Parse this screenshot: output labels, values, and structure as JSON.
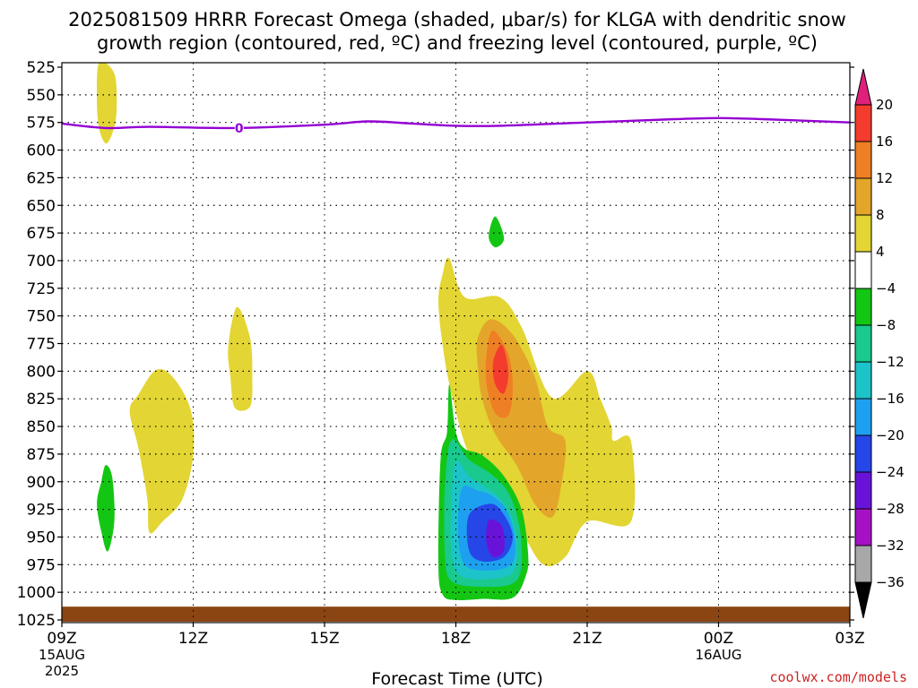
{
  "chart_data": {
    "type": "contour",
    "title_line1": "2025081509 HRRR Forecast Omega (shaded, μbar/s) for KLGA with dendritic snow",
    "title_line2": "growth region (contoured, red, ºC) and freezing level (contoured, purple, ºC)",
    "xlabel": "Forecast Time (UTC)",
    "credit": "coolwx.com/models",
    "y_axis": {
      "unit": "mb",
      "reversed": true,
      "ylim": [
        1025,
        525
      ],
      "ticks": [
        525,
        550,
        575,
        600,
        625,
        650,
        675,
        700,
        725,
        750,
        775,
        800,
        825,
        850,
        875,
        900,
        925,
        950,
        975,
        1000,
        1025
      ]
    },
    "x_axis": {
      "unit": "hours from 09Z 15AUG 2025",
      "xlim": [
        0,
        18
      ],
      "ticks": [
        {
          "x": 0,
          "label": "09Z",
          "sub1": "15AUG",
          "sub2": "2025"
        },
        {
          "x": 3,
          "label": "12Z",
          "sub1": "",
          "sub2": ""
        },
        {
          "x": 6,
          "label": "15Z",
          "sub1": "",
          "sub2": ""
        },
        {
          "x": 9,
          "label": "18Z",
          "sub1": "",
          "sub2": ""
        },
        {
          "x": 12,
          "label": "21Z",
          "sub1": "",
          "sub2": ""
        },
        {
          "x": 15,
          "label": "00Z",
          "sub1": "16AUG",
          "sub2": ""
        },
        {
          "x": 18,
          "label": "03Z",
          "sub1": "",
          "sub2": ""
        }
      ]
    },
    "grid": true,
    "colorbar": {
      "placement": "right",
      "labels": [
        20,
        16,
        12,
        8,
        4,
        -4,
        -8,
        -12,
        -16,
        -20,
        -24,
        -28,
        -32,
        -36
      ],
      "bins": [
        {
          "color": "#e0217b"
        },
        {
          "color": "#f43c2e"
        },
        {
          "color": "#ef7f24"
        },
        {
          "color": "#e3a62b"
        },
        {
          "color": "#e3d533"
        },
        {
          "color": "#ffffff"
        },
        {
          "color": "#14c614"
        },
        {
          "color": "#19c98e"
        },
        {
          "color": "#1cc4c9"
        },
        {
          "color": "#1ea0f0"
        },
        {
          "color": "#2646e8"
        },
        {
          "color": "#6a13d8"
        },
        {
          "color": "#a611c6"
        },
        {
          "color": "#a8a8a8"
        },
        {
          "color": "#000000"
        }
      ]
    },
    "freezing_level": {
      "color": "#9400d3",
      "label": "0",
      "label_x": 4.05,
      "points": [
        [
          0,
          576
        ],
        [
          1,
          580
        ],
        [
          2,
          579
        ],
        [
          4,
          580
        ],
        [
          6,
          577
        ],
        [
          7,
          574
        ],
        [
          8,
          576
        ],
        [
          9,
          578
        ],
        [
          10,
          578
        ],
        [
          12,
          575
        ],
        [
          14,
          572
        ],
        [
          15,
          571
        ],
        [
          16,
          572
        ],
        [
          18,
          575
        ]
      ]
    },
    "surface": {
      "color": "#8b4513",
      "top_mb": 1013
    },
    "regions": [
      {
        "color": "#e3d533",
        "points": [
          [
            0.85,
            521
          ],
          [
            1.2,
            531
          ],
          [
            1.25,
            565
          ],
          [
            1.15,
            585
          ],
          [
            1.0,
            594
          ],
          [
            0.85,
            580
          ],
          [
            0.8,
            555
          ]
        ]
      },
      {
        "color": "#e3d533",
        "points": [
          [
            4.0,
            742
          ],
          [
            4.3,
            770
          ],
          [
            4.35,
            806
          ],
          [
            4.3,
            832
          ],
          [
            3.95,
            833
          ],
          [
            3.85,
            805
          ],
          [
            3.8,
            778
          ]
        ]
      },
      {
        "color": "#e3d533",
        "points": [
          [
            1.75,
            821
          ],
          [
            2.15,
            799
          ],
          [
            2.55,
            806
          ],
          [
            2.95,
            836
          ],
          [
            3.0,
            876
          ],
          [
            2.75,
            916
          ],
          [
            2.3,
            936
          ],
          [
            2.0,
            946
          ],
          [
            1.95,
            915
          ],
          [
            1.75,
            870
          ],
          [
            1.55,
            836
          ]
        ]
      },
      {
        "color": "#14c614",
        "points": [
          [
            1.0,
            885
          ],
          [
            1.15,
            896
          ],
          [
            1.2,
            935
          ],
          [
            1.05,
            963
          ],
          [
            0.9,
            945
          ],
          [
            0.8,
            920
          ],
          [
            0.9,
            900
          ]
        ]
      },
      {
        "color": "#14c614",
        "points": [
          [
            9.9,
            660
          ],
          [
            10.1,
            680
          ],
          [
            9.9,
            688
          ],
          [
            9.75,
            678
          ]
        ]
      },
      {
        "color": "#e3d533",
        "points": [
          [
            8.85,
            698
          ],
          [
            9.2,
            733
          ],
          [
            10.0,
            733
          ],
          [
            10.5,
            760
          ],
          [
            11.2,
            824
          ],
          [
            12.0,
            800
          ],
          [
            12.3,
            825
          ],
          [
            12.55,
            850
          ],
          [
            12.6,
            863
          ],
          [
            13.0,
            863
          ],
          [
            13.0,
            936
          ],
          [
            12.0,
            936
          ],
          [
            11.5,
            968
          ],
          [
            11.0,
            975
          ],
          [
            10.5,
            945
          ],
          [
            9.9,
            905
          ],
          [
            9.3,
            875
          ],
          [
            8.9,
            820
          ],
          [
            8.7,
            777
          ],
          [
            8.6,
            736
          ],
          [
            8.7,
            712
          ]
        ]
      },
      {
        "color": "#e3a62b",
        "points": [
          [
            9.8,
            753
          ],
          [
            10.3,
            767
          ],
          [
            10.8,
            805
          ],
          [
            11.1,
            850
          ],
          [
            11.5,
            863
          ],
          [
            11.4,
            905
          ],
          [
            11.2,
            932
          ],
          [
            10.8,
            920
          ],
          [
            10.4,
            886
          ],
          [
            9.9,
            857
          ],
          [
            9.6,
            825
          ],
          [
            9.5,
            795
          ],
          [
            9.5,
            770
          ]
        ]
      },
      {
        "color": "#ef7f24",
        "points": [
          [
            9.85,
            763
          ],
          [
            10.2,
            785
          ],
          [
            10.3,
            815
          ],
          [
            10.2,
            840
          ],
          [
            9.9,
            838
          ],
          [
            9.7,
            812
          ],
          [
            9.7,
            785
          ]
        ]
      },
      {
        "color": "#f43c2e",
        "points": [
          [
            10.05,
            776
          ],
          [
            10.2,
            800
          ],
          [
            10.1,
            820
          ],
          [
            9.9,
            812
          ],
          [
            9.85,
            792
          ]
        ]
      },
      {
        "color": "#14c614",
        "points": [
          [
            8.85,
            812
          ],
          [
            8.8,
            855
          ],
          [
            8.65,
            880
          ],
          [
            8.6,
            975
          ],
          [
            8.7,
            1002
          ],
          [
            9.0,
            1007
          ],
          [
            9.6,
            1006
          ],
          [
            10.3,
            1005
          ],
          [
            10.6,
            985
          ],
          [
            10.65,
            965
          ],
          [
            10.5,
            925
          ],
          [
            10.1,
            895
          ],
          [
            9.6,
            876
          ],
          [
            9.2,
            870
          ],
          [
            9.0,
            855
          ]
        ]
      },
      {
        "color": "#19c98e",
        "points": [
          [
            8.9,
            862
          ],
          [
            8.75,
            905
          ],
          [
            8.75,
            965
          ],
          [
            8.9,
            990
          ],
          [
            9.6,
            995
          ],
          [
            10.3,
            992
          ],
          [
            10.5,
            975
          ],
          [
            10.45,
            940
          ],
          [
            10.2,
            910
          ],
          [
            9.8,
            893
          ],
          [
            9.3,
            880
          ]
        ]
      },
      {
        "color": "#1cc4c9",
        "points": [
          [
            9.0,
            882
          ],
          [
            8.9,
            920
          ],
          [
            8.9,
            963
          ],
          [
            9.1,
            985
          ],
          [
            9.8,
            988
          ],
          [
            10.3,
            982
          ],
          [
            10.4,
            960
          ],
          [
            10.3,
            935
          ],
          [
            10.0,
            915
          ],
          [
            9.6,
            903
          ],
          [
            9.3,
            895
          ]
        ]
      },
      {
        "color": "#1ea0f0",
        "points": [
          [
            9.15,
            905
          ],
          [
            9.05,
            935
          ],
          [
            9.1,
            965
          ],
          [
            9.3,
            978
          ],
          [
            9.9,
            980
          ],
          [
            10.3,
            973
          ],
          [
            10.35,
            950
          ],
          [
            10.15,
            925
          ],
          [
            9.8,
            912
          ],
          [
            9.5,
            908
          ]
        ]
      },
      {
        "color": "#2646e8",
        "points": [
          [
            9.3,
            930
          ],
          [
            9.3,
            962
          ],
          [
            9.6,
            972
          ],
          [
            10.1,
            968
          ],
          [
            10.3,
            950
          ],
          [
            10.1,
            930
          ],
          [
            9.8,
            920
          ]
        ]
      },
      {
        "color": "#6a13d8",
        "points": [
          [
            9.75,
            935
          ],
          [
            10.05,
            940
          ],
          [
            10.1,
            962
          ],
          [
            9.85,
            968
          ],
          [
            9.7,
            955
          ]
        ]
      }
    ]
  }
}
